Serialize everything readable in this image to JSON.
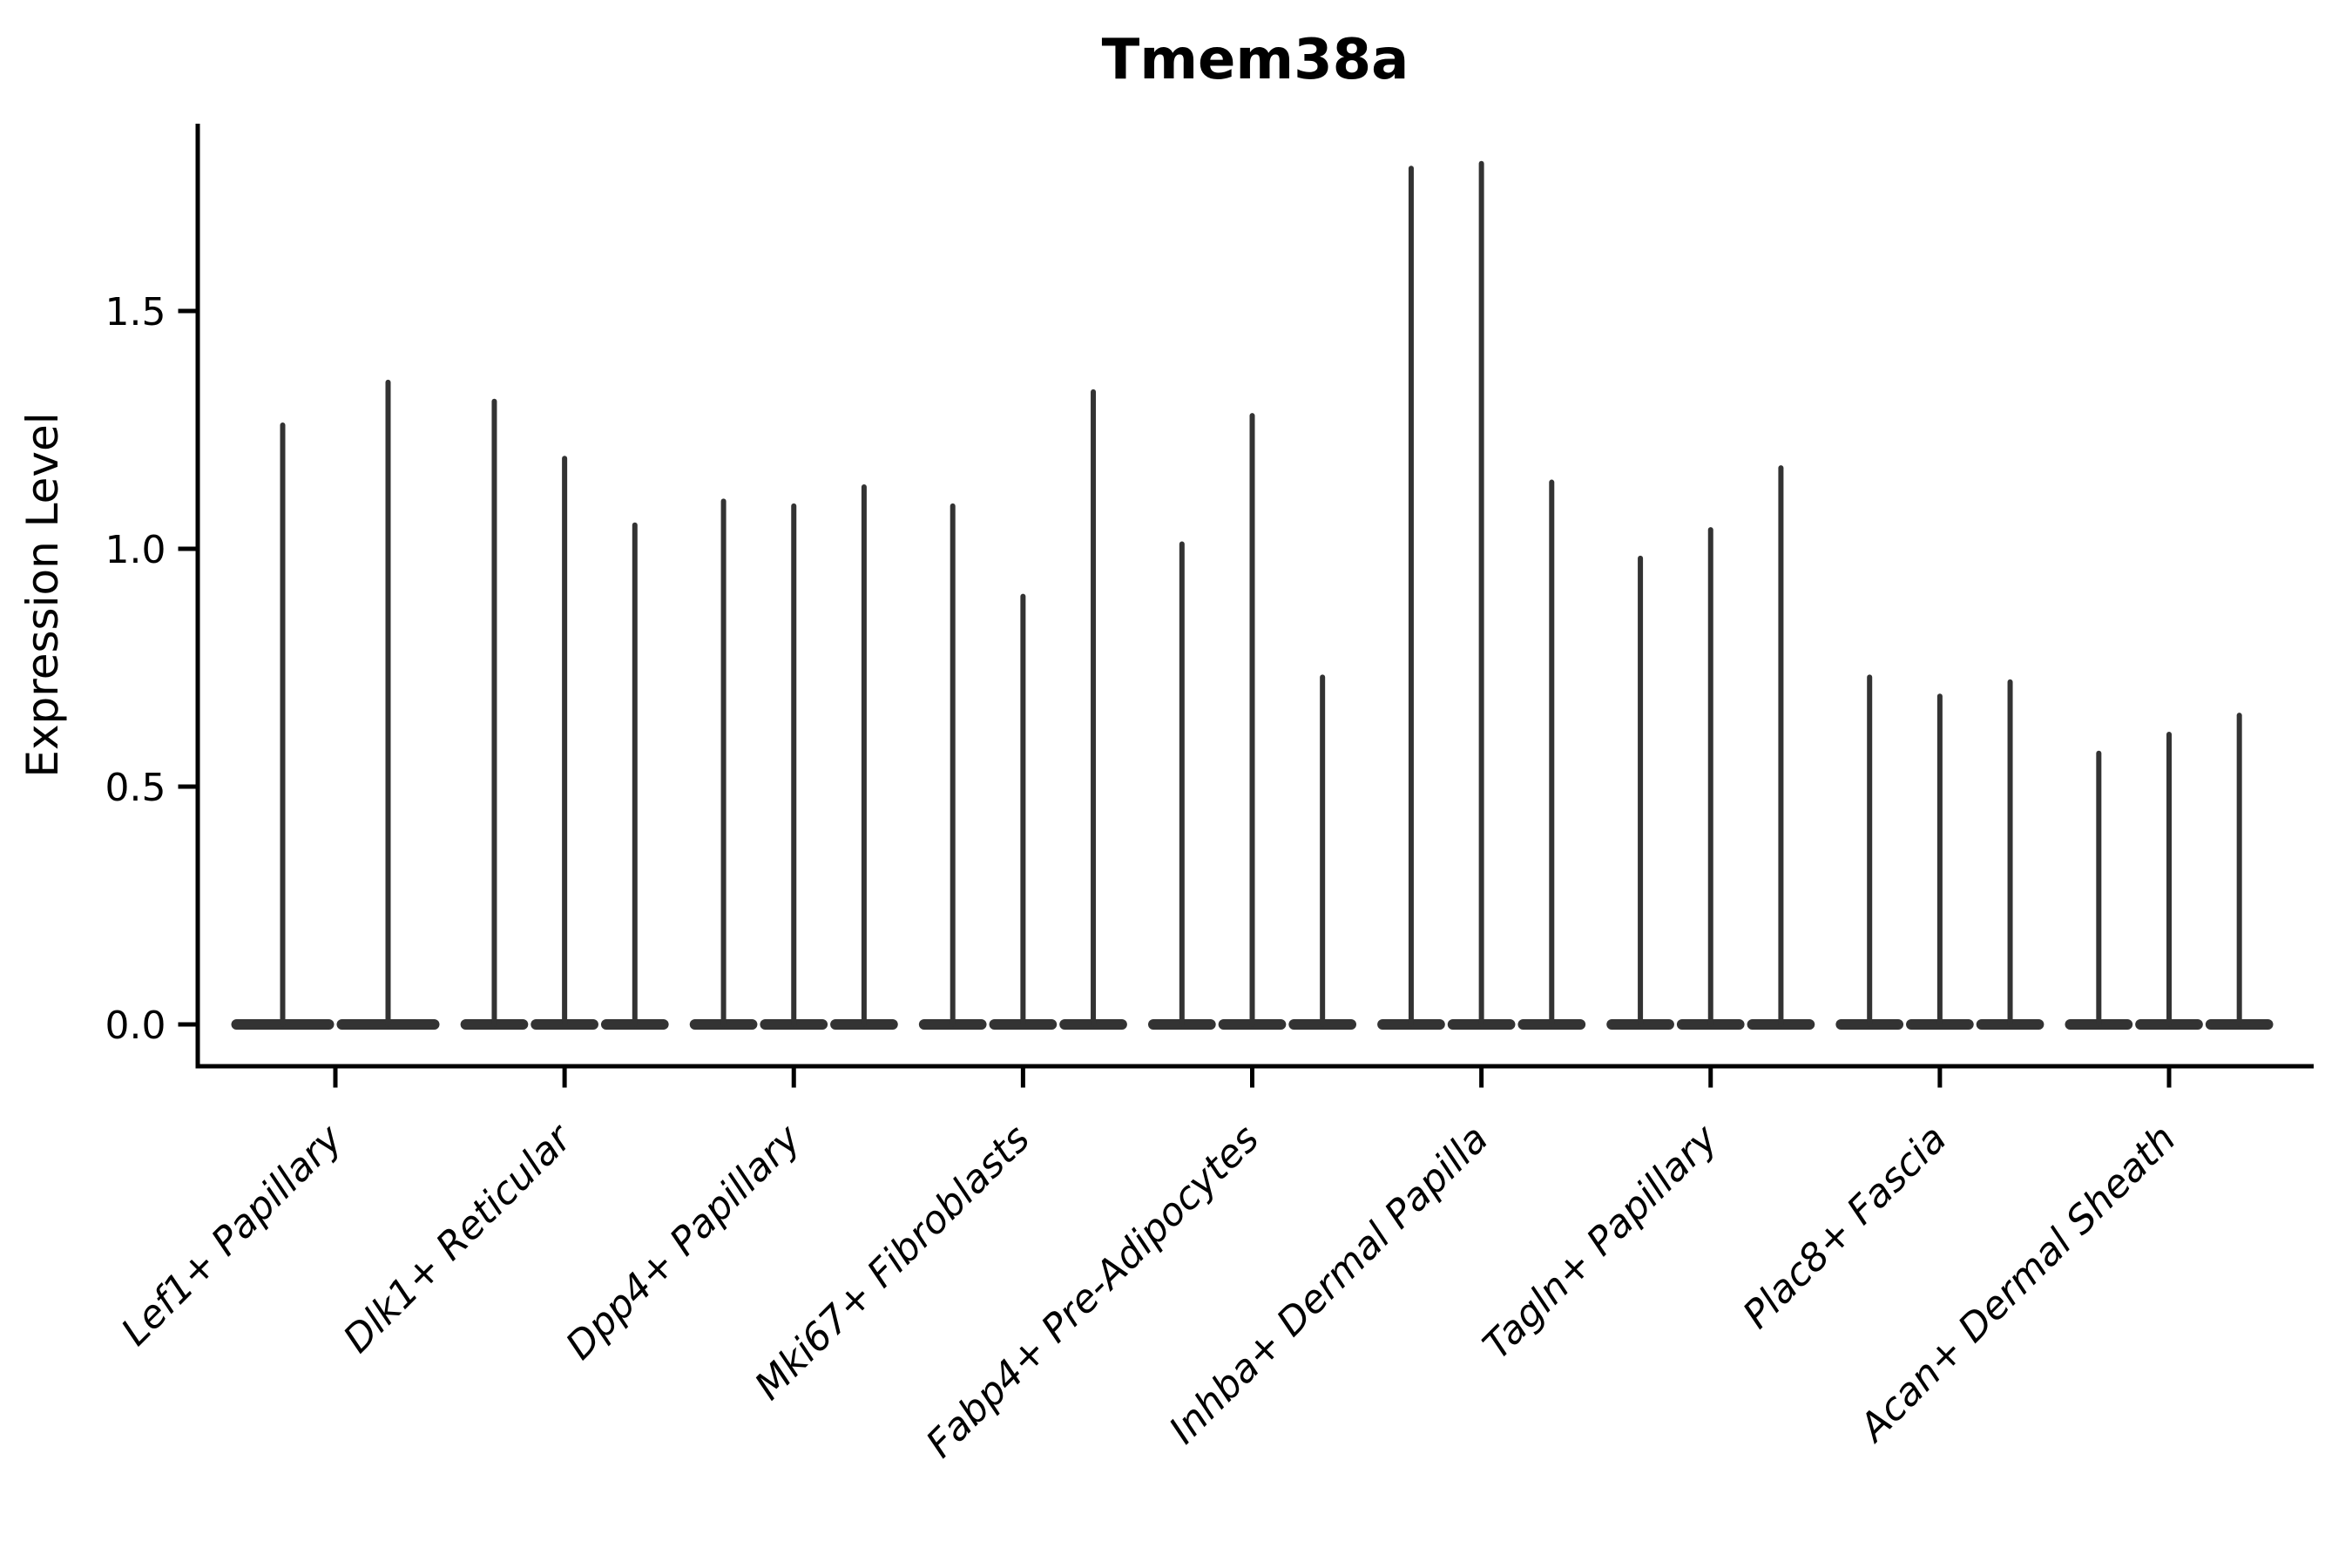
{
  "title": "Tmem38a",
  "colors": {
    "violin": "#333333",
    "axis": "#000000",
    "background": "#ffffff"
  },
  "chart_data": {
    "type": "violin",
    "title": "Tmem38a",
    "xlabel": "",
    "ylabel": "Expression Level",
    "ylim": [
      0,
      1.89
    ],
    "yticks": [
      0.0,
      0.5,
      1.0,
      1.5
    ],
    "ytick_labels": [
      "0.0",
      "0.5",
      "1.0",
      "1.5"
    ],
    "grid": false,
    "legend": "none",
    "violin_color": "#333333",
    "shape_note": "Each violin is a needle shape: a wide flat base at expression 0 and a very thin spike rising to its maximum value; violins within a category sit side by side forming one continuous base bar.",
    "categories": [
      "Lef1+ Papillary",
      "Dlk1+ Reticular",
      "Dpp4+ Papillary",
      "Mki67+ Fibroblasts",
      "Fabp4+ Pre-Adipocytes",
      "Inhba+ Dermal Papilla",
      "Tagln+ Papillary",
      "Plac8+ Fascia",
      "Acan+ Dermal Sheath"
    ],
    "groups": [
      {
        "category": "Lef1+ Papillary",
        "violin_maxima": [
          1.26,
          1.35
        ]
      },
      {
        "category": "Dlk1+ Reticular",
        "violin_maxima": [
          1.31,
          1.19,
          1.05
        ]
      },
      {
        "category": "Dpp4+ Papillary",
        "violin_maxima": [
          1.1,
          1.09,
          1.13
        ]
      },
      {
        "category": "Mki67+ Fibroblasts",
        "violin_maxima": [
          1.09,
          0.9,
          1.33
        ]
      },
      {
        "category": "Fabp4+ Pre-Adipocytes",
        "violin_maxima": [
          1.01,
          1.28,
          0.73
        ]
      },
      {
        "category": "Inhba+ Dermal Papilla",
        "violin_maxima": [
          1.8,
          1.81,
          1.14
        ]
      },
      {
        "category": "Tagln+ Papillary",
        "violin_maxima": [
          0.98,
          1.04,
          1.17
        ]
      },
      {
        "category": "Plac8+ Fascia",
        "violin_maxima": [
          0.73,
          0.69,
          0.72
        ]
      },
      {
        "category": "Acan+ Dermal Sheath",
        "violin_maxima": [
          0.57,
          0.61,
          0.65
        ]
      }
    ]
  }
}
